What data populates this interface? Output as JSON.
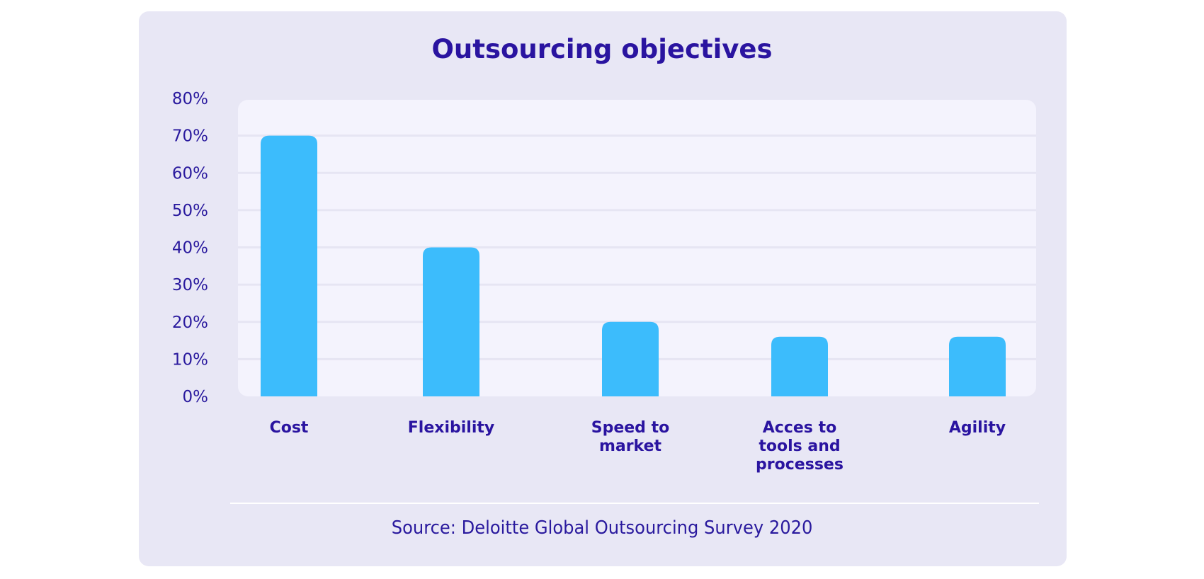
{
  "chart_data": {
    "type": "bar",
    "title": "Outsourcing objectives",
    "xlabel": "",
    "ylabel": "",
    "categories": [
      [
        "Cost"
      ],
      [
        "Flexibility"
      ],
      [
        "Speed to",
        "market"
      ],
      [
        "Acces to",
        "tools and",
        "processes"
      ],
      [
        "Agility"
      ]
    ],
    "category_names": [
      "Cost",
      "Flexibility",
      "Speed to market",
      "Acces to tools and processes",
      "Agility"
    ],
    "values": [
      70,
      40,
      20,
      16,
      16
    ],
    "unit": "%",
    "ylim": [
      0,
      80
    ],
    "yticks": [
      0,
      10,
      20,
      30,
      40,
      50,
      60,
      70,
      80
    ],
    "ytick_labels": [
      "0%",
      "10%",
      "20%",
      "30%",
      "40%",
      "50%",
      "60%",
      "70%",
      "80%"
    ],
    "grid": true,
    "legend": "none",
    "source": "Source: Deloitte Global Outsourcing Survey 2020"
  },
  "colors": {
    "bar": "#3cbcfc",
    "card_background": "#e8e7f5",
    "plot_background": "#f4f3fd",
    "gridline": "#e6e5f3",
    "text": "#2a14a0"
  }
}
